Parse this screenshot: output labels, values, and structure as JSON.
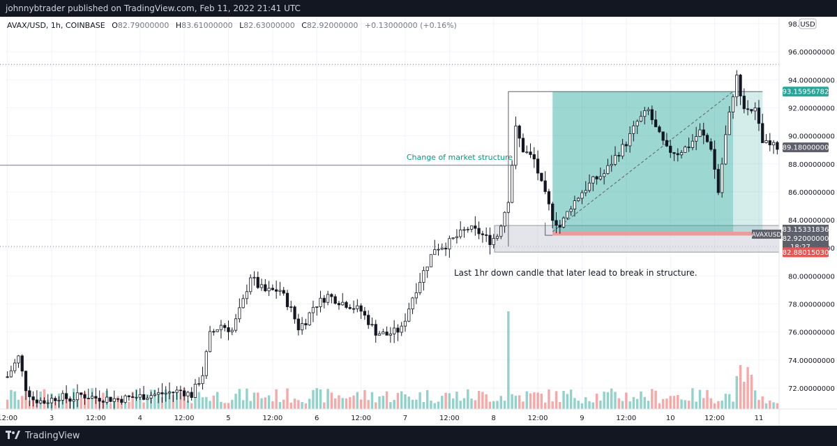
{
  "header": {
    "published_text": "johnnybtrader published on TradingView.com, Feb 11, 2022 21:41 UTC"
  },
  "legend": {
    "symbol": "AVAX/USD, 1h, COINBASE",
    "open_label": "O",
    "open": "82.79000000",
    "high_label": "H",
    "high": "83.61000000",
    "low_label": "L",
    "low": "82.63000000",
    "close_label": "C",
    "close": "82.92000000",
    "change": "+0.13000000 (+0.16%)"
  },
  "currency_badge": "USD",
  "footer": {
    "brand": "TradingView"
  },
  "colors": {
    "up": "#26a69a",
    "down": "#ef5350",
    "grid": "#f0f3fa",
    "target": "#26a69a",
    "stop": "#ef5350"
  },
  "annotations": {
    "choch": "Change of market structure",
    "note": "Last 1hr down candle that later lead to break in structure."
  },
  "price_labels": {
    "target": "93.15956782",
    "current": "89.18000000",
    "entry": "83.15331836",
    "last_price": "82.92000000",
    "countdown": "18:27",
    "stop": "82.88015030",
    "symbol_tag": "AVAXUSD"
  },
  "chart_data": {
    "type": "candlestick",
    "symbol": "AVAX/USD",
    "interval": "1h",
    "ylim": [
      70.5,
      98.5
    ],
    "y_ticks": [
      "72.00000000",
      "74.00000000",
      "76.00000000",
      "78.00000000",
      "80.00000000",
      "82.00000000",
      "84.00000000",
      "86.00000000",
      "88.00000000",
      "90.00000000",
      "92.00000000",
      "94.00000000",
      "96.00000000",
      "98.0"
    ],
    "x_ticks": [
      {
        "label": "12:00",
        "i": 0
      },
      {
        "label": "3",
        "i": 12
      },
      {
        "label": "12:00",
        "i": 24
      },
      {
        "label": "4",
        "i": 36
      },
      {
        "label": "12:00",
        "i": 48
      },
      {
        "label": "5",
        "i": 60
      },
      {
        "label": "12:00",
        "i": 72
      },
      {
        "label": "6",
        "i": 84
      },
      {
        "label": "12:00",
        "i": 96
      },
      {
        "label": "7",
        "i": 108
      },
      {
        "label": "12:00",
        "i": 120
      },
      {
        "label": "8",
        "i": 132
      },
      {
        "label": "12:00",
        "i": 144
      },
      {
        "label": "9",
        "i": 156
      },
      {
        "label": "12:00",
        "i": 168
      },
      {
        "label": "10",
        "i": 180
      },
      {
        "label": "12:00",
        "i": 192
      },
      {
        "label": "11",
        "i": 204
      }
    ],
    "bar_count": 210,
    "path_points": [
      [
        0,
        72.8
      ],
      [
        3,
        74.2
      ],
      [
        5,
        72.0
      ],
      [
        7,
        71.2
      ],
      [
        10,
        71.0
      ],
      [
        14,
        71.4
      ],
      [
        17,
        71.2
      ],
      [
        20,
        71.5
      ],
      [
        24,
        71.3
      ],
      [
        30,
        71.2
      ],
      [
        36,
        71.4
      ],
      [
        42,
        71.6
      ],
      [
        47,
        71.8
      ],
      [
        50,
        71.5
      ],
      [
        53,
        73.0
      ],
      [
        55,
        75.8
      ],
      [
        58,
        76.5
      ],
      [
        61,
        76.1
      ],
      [
        64,
        78.2
      ],
      [
        66,
        80.0
      ],
      [
        68,
        79.3
      ],
      [
        70,
        78.9
      ],
      [
        74,
        79.0
      ],
      [
        77,
        77.6
      ],
      [
        79,
        76.3
      ],
      [
        81,
        76.8
      ],
      [
        83,
        77.8
      ],
      [
        87,
        78.6
      ],
      [
        90,
        78.2
      ],
      [
        93,
        77.9
      ],
      [
        96,
        77.5
      ],
      [
        100,
        76.0
      ],
      [
        103,
        75.8
      ],
      [
        107,
        76.2
      ],
      [
        110,
        78.5
      ],
      [
        113,
        80.3
      ],
      [
        116,
        82.0
      ],
      [
        119,
        82.2
      ],
      [
        122,
        82.8
      ],
      [
        125,
        83.4
      ],
      [
        128,
        83.1
      ],
      [
        131,
        82.5
      ],
      [
        133,
        82.9
      ],
      [
        136,
        85.5
      ],
      [
        138,
        90.5
      ],
      [
        140,
        89.0
      ],
      [
        143,
        88.3
      ],
      [
        145,
        86.5
      ],
      [
        148,
        84.2
      ],
      [
        150,
        83.5
      ],
      [
        153,
        85.0
      ],
      [
        156,
        86.0
      ],
      [
        159,
        86.8
      ],
      [
        162,
        87.3
      ],
      [
        165,
        88.5
      ],
      [
        168,
        89.5
      ],
      [
        171,
        91.0
      ],
      [
        174,
        91.8
      ],
      [
        176,
        90.5
      ],
      [
        179,
        89.0
      ],
      [
        182,
        88.8
      ],
      [
        185,
        89.3
      ],
      [
        188,
        90.3
      ],
      [
        191,
        89.2
      ],
      [
        193,
        86.0
      ],
      [
        195,
        90.0
      ],
      [
        197,
        93.0
      ],
      [
        198,
        94.2
      ],
      [
        200,
        92.0
      ],
      [
        203,
        91.8
      ],
      [
        205,
        89.5
      ],
      [
        207,
        89.3
      ],
      [
        209,
        89.2
      ]
    ],
    "down_candle_zone": {
      "from_i": 133,
      "y_top": 83.6,
      "y_bottom": 81.7
    },
    "position": {
      "entry": 83.15331836,
      "target": 93.15956782,
      "stop": 82.8801503,
      "from_i": 148,
      "to_i": 205
    },
    "choch_level": 87.9,
    "dotted_levels": [
      95.1,
      82.1
    ],
    "volume_spike_i": 136
  }
}
